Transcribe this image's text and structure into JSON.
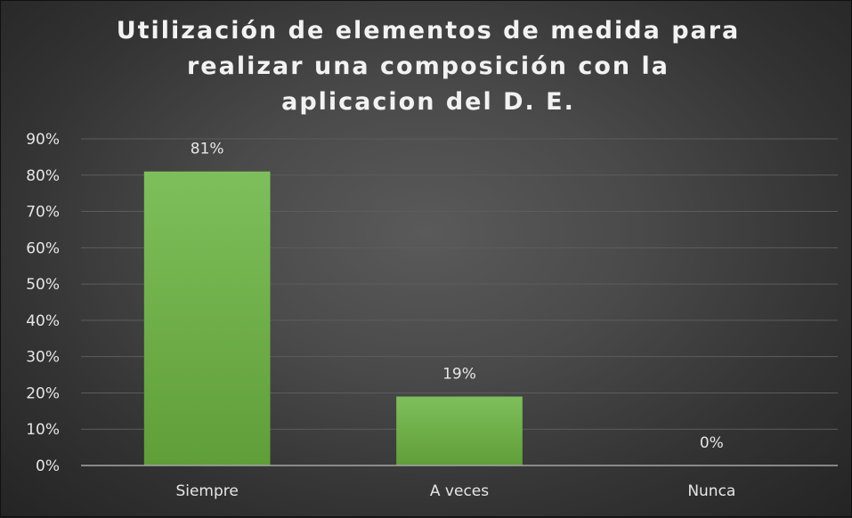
{
  "chart_data": {
    "type": "bar",
    "title": "Utilización de elementos de medida para realizar una composición con la aplicacion del D. E.",
    "categories": [
      "Siempre",
      "A veces",
      "Nunca"
    ],
    "values": [
      0.81,
      0.19,
      0.0
    ],
    "data_labels": [
      "81%",
      "19%",
      "0%"
    ],
    "ylim": [
      0,
      0.9
    ],
    "yticks": [
      0,
      0.1,
      0.2,
      0.3,
      0.4,
      0.5,
      0.6,
      0.7,
      0.8,
      0.9
    ],
    "ytick_labels": [
      "0%",
      "10%",
      "20%",
      "30%",
      "40%",
      "50%",
      "60%",
      "70%",
      "80%",
      "90%"
    ],
    "xlabel": "",
    "ylabel": "",
    "grid": true,
    "legend": "none",
    "colors": {
      "bar_top": "#7fbf5b",
      "bar_bottom": "#5f9e38",
      "gridline": "#5c5c5c",
      "axis": "#a6a6a6",
      "text": "#e6e6e6"
    }
  }
}
